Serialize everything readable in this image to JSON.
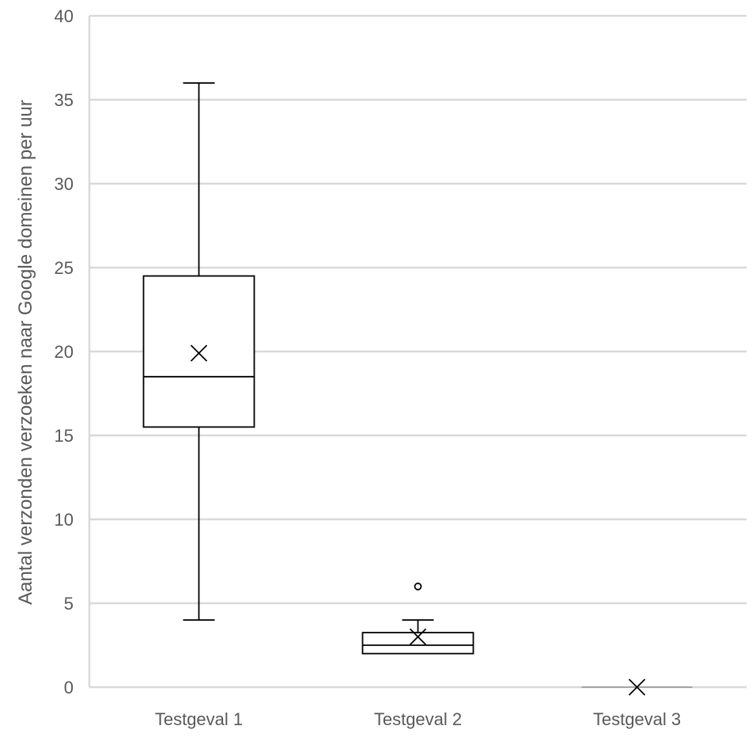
{
  "chart_data": {
    "type": "box",
    "title": "",
    "xlabel": "",
    "ylabel": "Aantal verzonden verzoeken naar Google domeinen per uur",
    "ylim": [
      0,
      40
    ],
    "yticks": [
      0,
      5,
      10,
      15,
      20,
      25,
      30,
      35,
      40
    ],
    "grid": true,
    "categories": [
      "Testgeval 1",
      "Testgeval 2",
      "Testgeval 3"
    ],
    "boxes": [
      {
        "category": "Testgeval 1",
        "min": 4,
        "q1": 15.5,
        "median": 18.5,
        "q3": 24.5,
        "max": 36,
        "mean": 19.9,
        "outliers": []
      },
      {
        "category": "Testgeval 2",
        "min": 2,
        "q1": 2,
        "median": 2.5,
        "q3": 3.25,
        "max": 4,
        "mean": 3,
        "outliers": [
          6
        ]
      },
      {
        "category": "Testgeval 3",
        "min": 0,
        "q1": 0,
        "median": 0,
        "q3": 0,
        "max": 0,
        "mean": 0,
        "outliers": []
      }
    ],
    "colors": {
      "gridline": "#d9d9d9",
      "box_stroke": "#000000",
      "axis_text": "#595959"
    }
  }
}
